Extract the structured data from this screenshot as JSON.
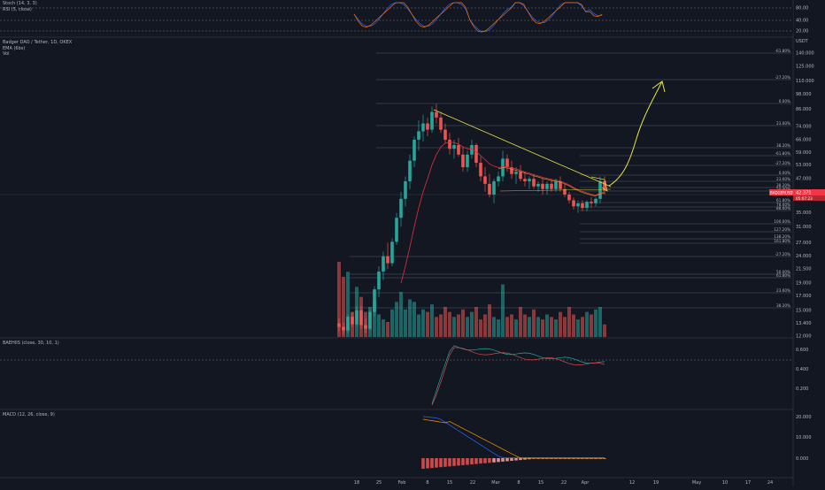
{
  "symbol": {
    "title": "Badger DAO / Tether, 1D, OKEX",
    "indicators": [
      "EMA (6bs)",
      "Vol"
    ]
  },
  "panes": {
    "stoch": {
      "label": "Stoch (14, 3, 3)",
      "label2": "RSI (5, close)",
      "ticks": [
        "80.00",
        "40.00",
        "20.00"
      ]
    },
    "bmi": {
      "label": "BAEHIIS (close, 30, 10, 1)",
      "ticks": [
        "0.600",
        "0.400",
        "0.200"
      ]
    },
    "macd": {
      "label": "MACD (12, 26, close, 9)",
      "ticks": [
        "20.000",
        "10.000",
        "0.000"
      ]
    }
  },
  "price_axis": {
    "unit": "USDT",
    "ticks": [
      "140.000",
      "125.000",
      "110.000",
      "98.000",
      "86.000",
      "74.000",
      "66.000",
      "59.000",
      "53.000",
      "47.000",
      "42.000",
      "35.000",
      "31.000",
      "27.000",
      "24.000",
      "21.500",
      "19.000",
      "17.000",
      "15.000",
      "13.400",
      "12.000"
    ],
    "current_price": "42.371",
    "countdown": "05:07:23",
    "symbol_badge": "BADGERUSDT"
  },
  "fib_levels": [
    "-61.80%",
    "-27.20%",
    "0.00%",
    "23.60%",
    "38.20%",
    "-61.80%",
    "-27.20%",
    "0.00%",
    "23.60%",
    "38.20%",
    "50.00%",
    "61.80%",
    "78.60%",
    "88.60%",
    "100.00%",
    "127.20%",
    "138.20%",
    "161.80%",
    "-27.20%",
    "50.00%",
    "61.80%",
    "23.60%",
    "38.20%"
  ],
  "time_axis": {
    "labels": [
      "18",
      "25",
      "Feb",
      "8",
      "15",
      "22",
      "Mar",
      "8",
      "15",
      "22",
      "Apr",
      "12",
      "19",
      "May",
      "10",
      "17",
      "24"
    ]
  },
  "chart_data": [
    {
      "type": "candlestick",
      "title": "Badger DAO / Tether, 1D, OKEX",
      "ohlc": [
        [
          13.4,
          14.0,
          12.5,
          13.0
        ],
        [
          13.0,
          13.5,
          12.2,
          12.6
        ],
        [
          12.6,
          14.5,
          12.3,
          14.2
        ],
        [
          14.2,
          14.8,
          13.0,
          13.3
        ],
        [
          13.3,
          15.5,
          13.1,
          15.0
        ],
        [
          15.0,
          15.6,
          12.8,
          13.2
        ],
        [
          13.2,
          14.0,
          12.3,
          12.8
        ],
        [
          12.8,
          15.0,
          12.6,
          14.8
        ],
        [
          14.8,
          18.5,
          14.2,
          18.0
        ],
        [
          18.0,
          22.0,
          16.8,
          21.0
        ],
        [
          21.0,
          25.0,
          19.5,
          24.0
        ],
        [
          24.0,
          27.0,
          21.5,
          22.6
        ],
        [
          22.6,
          28.0,
          22.0,
          27.2
        ],
        [
          27.2,
          35.0,
          26.5,
          33.5
        ],
        [
          33.5,
          42.0,
          31.0,
          39.5
        ],
        [
          39.5,
          48.0,
          37.0,
          46.0
        ],
        [
          46.0,
          58.0,
          43.0,
          55.0
        ],
        [
          55.0,
          68.0,
          52.0,
          66.0
        ],
        [
          66.0,
          78.0,
          60.0,
          71.0
        ],
        [
          71.0,
          82.0,
          65.0,
          76.0
        ],
        [
          76.0,
          80.0,
          68.0,
          72.0
        ],
        [
          72.0,
          88.0,
          70.0,
          84.0
        ],
        [
          84.0,
          90.0,
          76.0,
          80.0
        ],
        [
          80.0,
          84.0,
          70.0,
          72.0
        ],
        [
          72.0,
          76.0,
          64.0,
          66.0
        ],
        [
          66.0,
          70.0,
          58.0,
          61.0
        ],
        [
          61.0,
          66.0,
          56.0,
          63.0
        ],
        [
          63.0,
          67.0,
          57.0,
          58.0
        ],
        [
          58.0,
          62.0,
          50.0,
          52.0
        ],
        [
          52.0,
          60.0,
          50.0,
          58.0
        ],
        [
          58.0,
          66.0,
          56.0,
          63.0
        ],
        [
          63.0,
          64.0,
          52.0,
          54.0
        ],
        [
          54.0,
          57.0,
          46.0,
          48.0
        ],
        [
          48.0,
          52.0,
          42.0,
          45.0
        ],
        [
          45.0,
          49.0,
          40.0,
          41.0
        ],
        [
          41.0,
          47.0,
          38.0,
          46.0
        ],
        [
          46.0,
          50.0,
          44.0,
          48.0
        ],
        [
          48.0,
          60.0,
          46.0,
          56.0
        ],
        [
          56.0,
          58.0,
          50.0,
          52.0
        ],
        [
          52.0,
          55.0,
          47.0,
          49.0
        ],
        [
          49.0,
          52.0,
          45.0,
          50.0
        ],
        [
          50.0,
          53.0,
          46.0,
          47.0
        ],
        [
          47.0,
          50.0,
          44.0,
          46.0
        ],
        [
          46.0,
          48.0,
          43.0,
          47.0
        ],
        [
          47.0,
          49.0,
          43.0,
          44.0
        ],
        [
          44.0,
          46.0,
          42.0,
          45.0
        ],
        [
          45.0,
          47.0,
          41.0,
          43.0
        ],
        [
          43.0,
          46.0,
          41.0,
          45.0
        ],
        [
          45.0,
          47.0,
          42.0,
          43.0
        ],
        [
          43.0,
          47.0,
          42.0,
          46.0
        ],
        [
          46.0,
          48.0,
          42.0,
          43.0
        ],
        [
          43.0,
          45.0,
          40.0,
          41.0
        ],
        [
          41.0,
          42.0,
          38.0,
          39.0
        ],
        [
          39.0,
          40.0,
          36.0,
          37.0
        ],
        [
          37.0,
          39.0,
          35.0,
          38.0
        ],
        [
          38.0,
          39.0,
          35.5,
          36.5
        ],
        [
          36.5,
          39.0,
          35.5,
          38.5
        ],
        [
          38.5,
          40.0,
          36.5,
          38.0
        ],
        [
          38.0,
          40.0,
          37.0,
          39.5
        ],
        [
          39.5,
          48.0,
          38.0,
          46.0
        ],
        [
          46.0,
          48.0,
          41.0,
          42.4
        ]
      ],
      "volume": [
        30,
        24,
        26,
        10,
        20,
        16,
        10,
        12,
        14,
        9,
        7,
        6,
        11,
        14,
        18,
        11,
        15,
        14,
        9,
        11,
        10,
        13,
        8,
        9,
        12,
        10,
        8,
        9,
        11,
        8,
        10,
        12,
        7,
        9,
        13,
        8,
        7,
        21,
        8,
        9,
        7,
        12,
        9,
        8,
        11,
        8,
        7,
        9,
        8,
        7,
        10,
        8,
        12,
        9,
        7,
        8,
        10,
        9,
        11,
        12,
        5
      ],
      "ema": [
        null,
        null,
        null,
        null,
        null,
        null,
        null,
        null,
        null,
        null,
        null,
        null,
        null,
        null,
        19.0,
        22.0,
        26.0,
        31.0,
        36.5,
        42.0,
        47.0,
        53.0,
        58.0,
        62.0,
        64.0,
        64.5,
        64.4,
        63.5,
        62.0,
        61.0,
        60.8,
        59.5,
        57.5,
        55.5,
        53.5,
        52.5,
        51.8,
        52.3,
        52.2,
        51.6,
        51.2,
        50.6,
        49.9,
        49.4,
        48.7,
        48.2,
        47.6,
        47.2,
        46.7,
        46.5,
        46.1,
        45.4,
        44.6,
        43.6,
        42.8,
        42.1,
        41.6,
        41.1,
        40.8,
        41.6,
        41.8
      ]
    }
  ]
}
